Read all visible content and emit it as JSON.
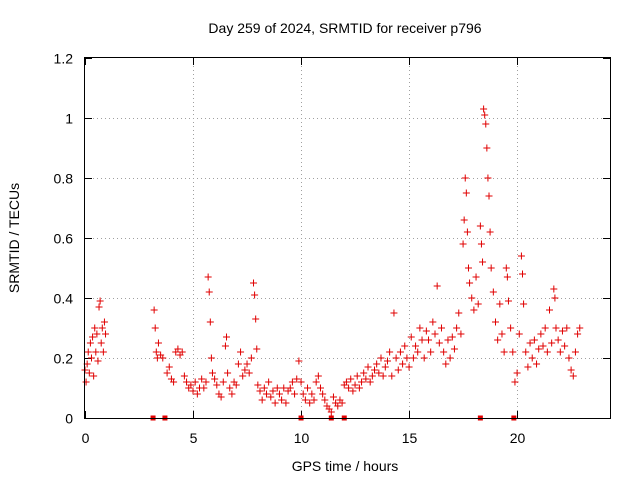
{
  "chart_data": {
    "type": "scatter",
    "title": "Day 259 of 2024, SRMTID for receiver p796",
    "xlabel": "GPS time / hours",
    "ylabel": "SRMTID / TECUs",
    "xlim": [
      0,
      24.3
    ],
    "ylim": [
      0,
      1.2
    ],
    "x_ticks": [
      0,
      5,
      10,
      15,
      20
    ],
    "x_tick_labels": [
      "0",
      "5",
      "10",
      "15",
      "20"
    ],
    "y_ticks": [
      0,
      0.2,
      0.4,
      0.6,
      0.8,
      1,
      1.2
    ],
    "y_tick_labels": [
      "0",
      "0.2",
      "0.4",
      "0.6",
      "0.8",
      "1",
      "1.2"
    ],
    "grid": true,
    "marker": "+",
    "color": "#e00000",
    "series": [
      {
        "name": "SRMTID",
        "points": [
          [
            0.0,
            0.16
          ],
          [
            0.05,
            0.12
          ],
          [
            0.1,
            0.18
          ],
          [
            0.15,
            0.22
          ],
          [
            0.2,
            0.15
          ],
          [
            0.25,
            0.25
          ],
          [
            0.3,
            0.2
          ],
          [
            0.35,
            0.27
          ],
          [
            0.4,
            0.14
          ],
          [
            0.45,
            0.3
          ],
          [
            0.5,
            0.22
          ],
          [
            0.55,
            0.28
          ],
          [
            0.6,
            0.19
          ],
          [
            0.65,
            0.37
          ],
          [
            0.7,
            0.39
          ],
          [
            0.75,
            0.25
          ],
          [
            0.8,
            0.3
          ],
          [
            0.85,
            0.22
          ],
          [
            0.9,
            0.32
          ],
          [
            0.95,
            0.28
          ],
          [
            3.2,
            0.36
          ],
          [
            3.25,
            0.3
          ],
          [
            3.3,
            0.22
          ],
          [
            3.35,
            0.2
          ],
          [
            3.4,
            0.25
          ],
          [
            3.5,
            0.21
          ],
          [
            3.6,
            0.2
          ],
          [
            3.8,
            0.15
          ],
          [
            3.9,
            0.17
          ],
          [
            4.0,
            0.13
          ],
          [
            4.1,
            0.12
          ],
          [
            4.2,
            0.22
          ],
          [
            4.3,
            0.23
          ],
          [
            4.4,
            0.21
          ],
          [
            4.5,
            0.22
          ],
          [
            4.6,
            0.14
          ],
          [
            4.7,
            0.12
          ],
          [
            4.8,
            0.1
          ],
          [
            4.9,
            0.11
          ],
          [
            5.0,
            0.09
          ],
          [
            5.1,
            0.12
          ],
          [
            5.2,
            0.08
          ],
          [
            5.3,
            0.1
          ],
          [
            5.4,
            0.13
          ],
          [
            5.5,
            0.1
          ],
          [
            5.6,
            0.12
          ],
          [
            5.7,
            0.47
          ],
          [
            5.75,
            0.42
          ],
          [
            5.8,
            0.32
          ],
          [
            5.85,
            0.2
          ],
          [
            5.9,
            0.15
          ],
          [
            6.0,
            0.13
          ],
          [
            6.1,
            0.11
          ],
          [
            6.2,
            0.08
          ],
          [
            6.3,
            0.07
          ],
          [
            6.4,
            0.12
          ],
          [
            6.5,
            0.24
          ],
          [
            6.55,
            0.27
          ],
          [
            6.6,
            0.15
          ],
          [
            6.7,
            0.1
          ],
          [
            6.8,
            0.08
          ],
          [
            6.9,
            0.12
          ],
          [
            7.0,
            0.11
          ],
          [
            7.1,
            0.18
          ],
          [
            7.2,
            0.22
          ],
          [
            7.3,
            0.14
          ],
          [
            7.4,
            0.16
          ],
          [
            7.5,
            0.18
          ],
          [
            7.6,
            0.15
          ],
          [
            7.7,
            0.2
          ],
          [
            7.8,
            0.45
          ],
          [
            7.85,
            0.41
          ],
          [
            7.9,
            0.33
          ],
          [
            7.95,
            0.23
          ],
          [
            8.0,
            0.11
          ],
          [
            8.1,
            0.09
          ],
          [
            8.2,
            0.06
          ],
          [
            8.3,
            0.1
          ],
          [
            8.4,
            0.08
          ],
          [
            8.5,
            0.12
          ],
          [
            8.6,
            0.07
          ],
          [
            8.7,
            0.09
          ],
          [
            8.8,
            0.05
          ],
          [
            8.9,
            0.1
          ],
          [
            9.0,
            0.08
          ],
          [
            9.1,
            0.06
          ],
          [
            9.2,
            0.1
          ],
          [
            9.3,
            0.05
          ],
          [
            9.4,
            0.09
          ],
          [
            9.5,
            0.1
          ],
          [
            9.6,
            0.12
          ],
          [
            9.7,
            0.08
          ],
          [
            9.8,
            0.13
          ],
          [
            9.9,
            0.19
          ],
          [
            10.0,
            0.12
          ],
          [
            10.1,
            0.08
          ],
          [
            10.2,
            0.06
          ],
          [
            10.3,
            0.1
          ],
          [
            10.4,
            0.05
          ],
          [
            10.5,
            0.08
          ],
          [
            10.6,
            0.06
          ],
          [
            10.7,
            0.12
          ],
          [
            10.8,
            0.14
          ],
          [
            10.9,
            0.1
          ],
          [
            11.0,
            0.08
          ],
          [
            11.1,
            0.06
          ],
          [
            11.2,
            0.04
          ],
          [
            11.3,
            0.03
          ],
          [
            11.4,
            0.02
          ],
          [
            11.5,
            0.07
          ],
          [
            11.6,
            0.05
          ],
          [
            11.7,
            0.04
          ],
          [
            11.8,
            0.06
          ],
          [
            11.9,
            0.05
          ],
          [
            12.0,
            0.11
          ],
          [
            12.1,
            0.12
          ],
          [
            12.2,
            0.1
          ],
          [
            12.3,
            0.13
          ],
          [
            12.4,
            0.09
          ],
          [
            12.5,
            0.11
          ],
          [
            12.6,
            0.14
          ],
          [
            12.7,
            0.1
          ],
          [
            12.8,
            0.12
          ],
          [
            12.9,
            0.15
          ],
          [
            13.0,
            0.13
          ],
          [
            13.1,
            0.17
          ],
          [
            13.2,
            0.12
          ],
          [
            13.3,
            0.14
          ],
          [
            13.4,
            0.16
          ],
          [
            13.5,
            0.18
          ],
          [
            13.6,
            0.15
          ],
          [
            13.7,
            0.2
          ],
          [
            13.8,
            0.14
          ],
          [
            13.9,
            0.17
          ],
          [
            14.0,
            0.19
          ],
          [
            14.1,
            0.22
          ],
          [
            14.2,
            0.14
          ],
          [
            14.3,
            0.35
          ],
          [
            14.4,
            0.2
          ],
          [
            14.5,
            0.16
          ],
          [
            14.6,
            0.22
          ],
          [
            14.7,
            0.18
          ],
          [
            14.8,
            0.24
          ],
          [
            14.9,
            0.2
          ],
          [
            15.0,
            0.17
          ],
          [
            15.1,
            0.27
          ],
          [
            15.2,
            0.2
          ],
          [
            15.3,
            0.24
          ],
          [
            15.4,
            0.22
          ],
          [
            15.5,
            0.3
          ],
          [
            15.6,
            0.26
          ],
          [
            15.7,
            0.2
          ],
          [
            15.8,
            0.29
          ],
          [
            15.9,
            0.26
          ],
          [
            16.0,
            0.22
          ],
          [
            16.1,
            0.32
          ],
          [
            16.2,
            0.28
          ],
          [
            16.3,
            0.44
          ],
          [
            16.4,
            0.25
          ],
          [
            16.5,
            0.3
          ],
          [
            16.6,
            0.22
          ],
          [
            16.7,
            0.18
          ],
          [
            16.8,
            0.26
          ],
          [
            16.9,
            0.2
          ],
          [
            17.0,
            0.27
          ],
          [
            17.1,
            0.23
          ],
          [
            17.2,
            0.3
          ],
          [
            17.3,
            0.35
          ],
          [
            17.4,
            0.28
          ],
          [
            17.5,
            0.58
          ],
          [
            17.55,
            0.66
          ],
          [
            17.6,
            0.8
          ],
          [
            17.65,
            0.75
          ],
          [
            17.7,
            0.62
          ],
          [
            17.75,
            0.5
          ],
          [
            17.8,
            0.45
          ],
          [
            17.9,
            0.4
          ],
          [
            18.0,
            0.36
          ],
          [
            18.1,
            0.47
          ],
          [
            18.2,
            0.38
          ],
          [
            18.3,
            0.64
          ],
          [
            18.35,
            0.58
          ],
          [
            18.4,
            0.52
          ],
          [
            18.45,
            1.03
          ],
          [
            18.5,
            1.01
          ],
          [
            18.55,
            0.98
          ],
          [
            18.6,
            0.9
          ],
          [
            18.65,
            0.8
          ],
          [
            18.7,
            0.74
          ],
          [
            18.75,
            0.62
          ],
          [
            18.8,
            0.5
          ],
          [
            18.9,
            0.42
          ],
          [
            19.0,
            0.32
          ],
          [
            19.1,
            0.26
          ],
          [
            19.2,
            0.38
          ],
          [
            19.3,
            0.28
          ],
          [
            19.4,
            0.22
          ],
          [
            19.5,
            0.5
          ],
          [
            19.55,
            0.47
          ],
          [
            19.6,
            0.39
          ],
          [
            19.7,
            0.3
          ],
          [
            19.8,
            0.22
          ],
          [
            19.9,
            0.12
          ],
          [
            20.0,
            0.15
          ],
          [
            20.1,
            0.28
          ],
          [
            20.2,
            0.54
          ],
          [
            20.25,
            0.48
          ],
          [
            20.3,
            0.38
          ],
          [
            20.4,
            0.22
          ],
          [
            20.5,
            0.17
          ],
          [
            20.6,
            0.25
          ],
          [
            20.7,
            0.2
          ],
          [
            20.8,
            0.26
          ],
          [
            20.9,
            0.18
          ],
          [
            21.0,
            0.23
          ],
          [
            21.1,
            0.28
          ],
          [
            21.2,
            0.24
          ],
          [
            21.3,
            0.3
          ],
          [
            21.4,
            0.22
          ],
          [
            21.5,
            0.36
          ],
          [
            21.6,
            0.25
          ],
          [
            21.7,
            0.43
          ],
          [
            21.75,
            0.4
          ],
          [
            21.8,
            0.3
          ],
          [
            21.9,
            0.26
          ],
          [
            22.0,
            0.22
          ],
          [
            22.1,
            0.29
          ],
          [
            22.2,
            0.24
          ],
          [
            22.3,
            0.3
          ],
          [
            22.4,
            0.2
          ],
          [
            22.5,
            0.16
          ],
          [
            22.6,
            0.14
          ],
          [
            22.7,
            0.22
          ],
          [
            22.8,
            0.28
          ],
          [
            22.9,
            0.3
          ]
        ]
      }
    ],
    "zero_markers_x": [
      3.15,
      3.7,
      10.0,
      11.4,
      12.0,
      18.3,
      19.85
    ]
  }
}
